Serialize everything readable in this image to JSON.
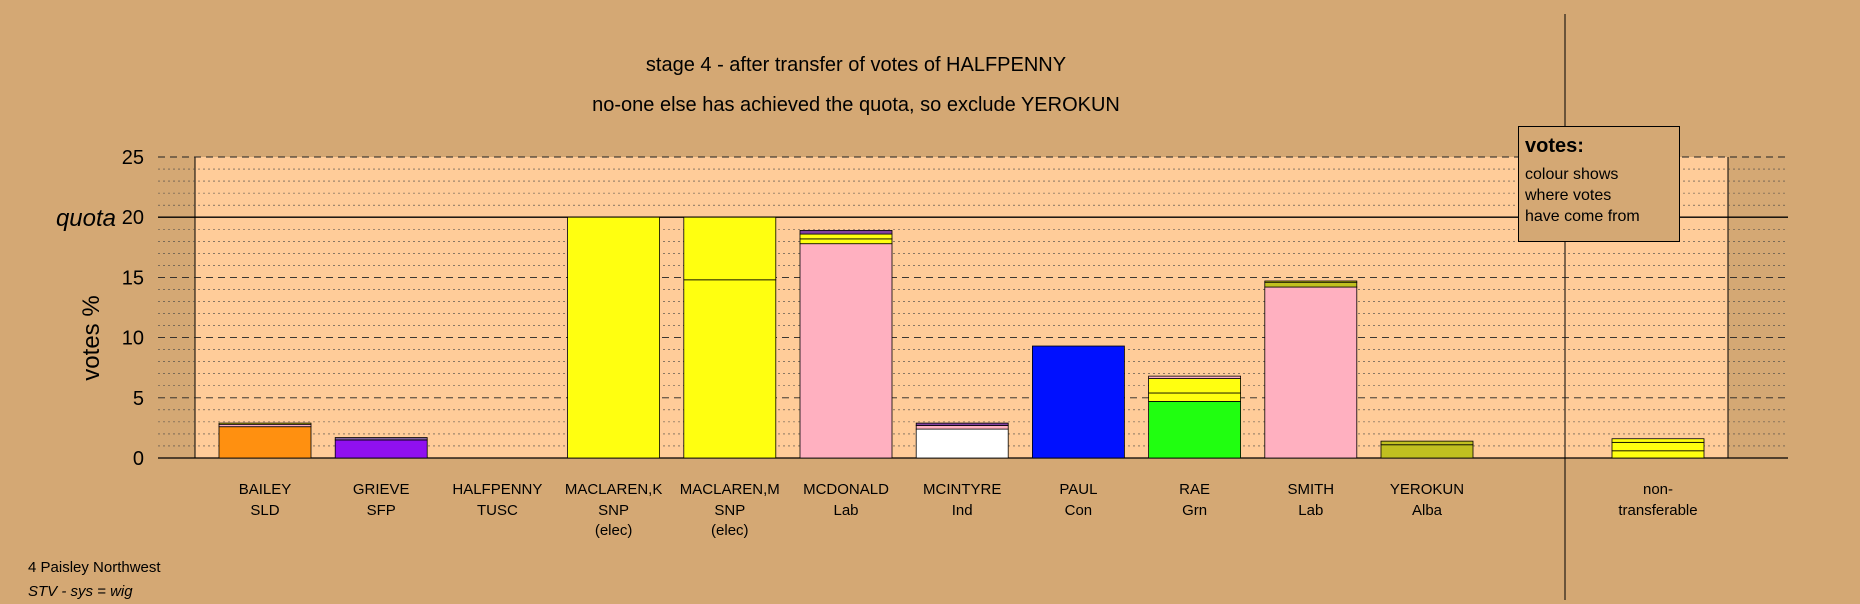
{
  "chart_data": {
    "type": "bar",
    "stacked": true,
    "title": "stage 4 - after transfer of votes of HALFPENNY",
    "subtitle": "no-one else has achieved the quota, so exclude YEROKUN",
    "ylabel": "votes %",
    "quota_label": "quota",
    "quota_value": 20,
    "ylim": [
      0,
      25
    ],
    "yticks": [
      0,
      5,
      10,
      15,
      20,
      25
    ],
    "grid": true,
    "legend_position": "top-right",
    "legend": {
      "title": "votes:",
      "lines": [
        "colour shows",
        "where votes",
        "have come from"
      ]
    },
    "candidates": [
      {
        "name": "BAILEY",
        "party": "SLD",
        "note": "",
        "segments": [
          {
            "value": 2.6,
            "color": "#FF9010"
          },
          {
            "value": 0.2,
            "color": "#FFB0C0"
          },
          {
            "value": 0.1,
            "color": "#FFFF10"
          }
        ]
      },
      {
        "name": "GRIEVE",
        "party": "SFP",
        "note": "",
        "segments": [
          {
            "value": 1.5,
            "color": "#9010F0"
          },
          {
            "value": 0.2,
            "color": "#8060A0"
          }
        ]
      },
      {
        "name": "HALFPENNY",
        "party": "TUSC",
        "note": "",
        "segments": []
      },
      {
        "name": "MACLAREN,K",
        "party": "SNP",
        "note": "(elec)",
        "segments": [
          {
            "value": 20,
            "color": "#FFFF10"
          }
        ]
      },
      {
        "name": "MACLAREN,M",
        "party": "SNP",
        "note": "(elec)",
        "segments": [
          {
            "value": 14.8,
            "color": "#FFFF10"
          },
          {
            "value": 5.2,
            "color": "#FFFF10"
          }
        ]
      },
      {
        "name": "MCDONALD",
        "party": "Lab",
        "note": "",
        "segments": [
          {
            "value": 17.8,
            "color": "#FFB0C0"
          },
          {
            "value": 0.4,
            "color": "#FFFF10"
          },
          {
            "value": 0.4,
            "color": "#FFFF10"
          },
          {
            "value": 0.3,
            "color": "#8040A0"
          }
        ]
      },
      {
        "name": "MCINTYRE",
        "party": "Ind",
        "note": "",
        "segments": [
          {
            "value": 2.4,
            "color": "#FFFFFF"
          },
          {
            "value": 0.3,
            "color": "#FFB0C0"
          },
          {
            "value": 0.2,
            "color": "#8040A0"
          }
        ]
      },
      {
        "name": "PAUL",
        "party": "Con",
        "note": "",
        "segments": [
          {
            "value": 9.3,
            "color": "#0010FF"
          }
        ]
      },
      {
        "name": "RAE",
        "party": "Grn",
        "note": "",
        "segments": [
          {
            "value": 4.7,
            "color": "#20FF10"
          },
          {
            "value": 0.7,
            "color": "#FFFF10"
          },
          {
            "value": 1.2,
            "color": "#FFFF10"
          },
          {
            "value": 0.2,
            "color": "#FFB0C0"
          }
        ]
      },
      {
        "name": "SMITH",
        "party": "Lab",
        "note": "",
        "segments": [
          {
            "value": 14.2,
            "color": "#FFB0C0"
          },
          {
            "value": 0.4,
            "color": "#C0C020"
          },
          {
            "value": 0.1,
            "color": "#FFFF10"
          }
        ]
      },
      {
        "name": "YEROKUN",
        "party": "Alba",
        "note": "",
        "segments": [
          {
            "value": 1.1,
            "color": "#C0C020"
          },
          {
            "value": 0.3,
            "color": "#C0C020"
          }
        ]
      }
    ],
    "nontransferable": {
      "label_line1": "non-",
      "label_line2": "transferable",
      "segments": [
        {
          "value": 0.6,
          "color": "#FFFF10"
        },
        {
          "value": 0.7,
          "color": "#FFFF10"
        },
        {
          "value": 0.3,
          "color": "#FFFF10"
        }
      ]
    }
  },
  "footer": {
    "line1": "4 Paisley Northwest",
    "line2": "STV - sys = wig"
  },
  "colors": {
    "background": "#D4A874",
    "plot_area": "#FFCC99"
  }
}
